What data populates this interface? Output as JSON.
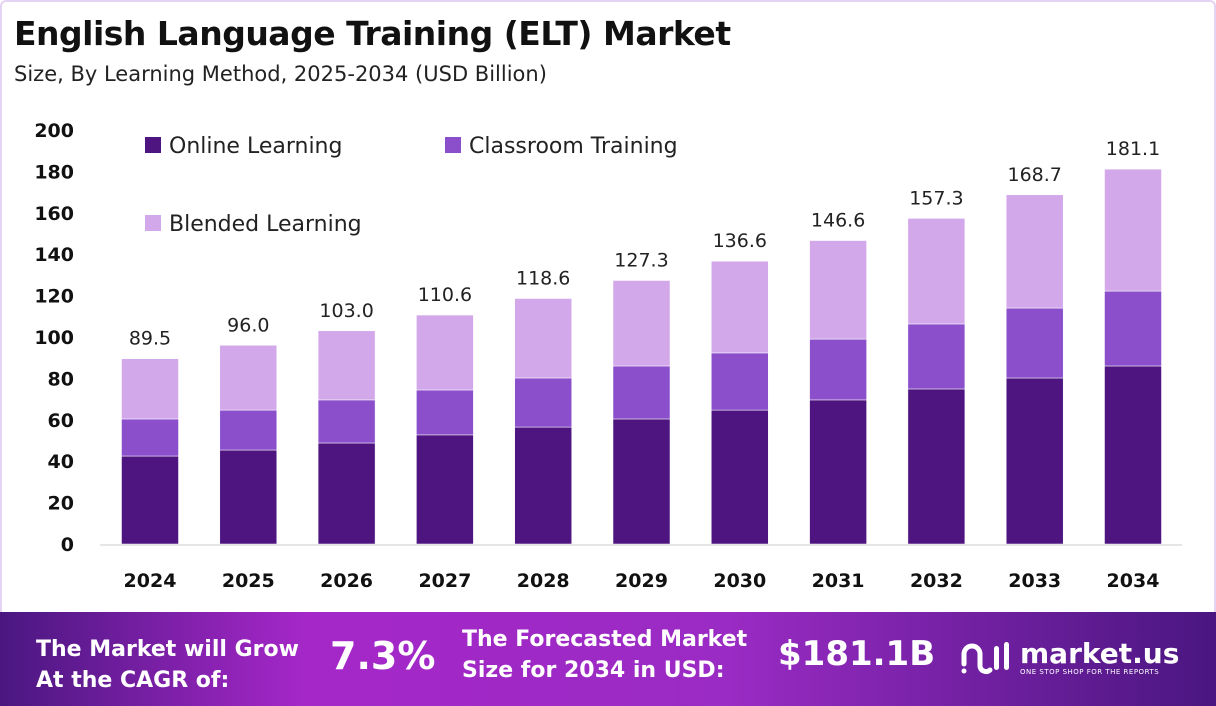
{
  "header": {
    "title": "English Language Training (ELT) Market",
    "subtitle": "Size, By Learning Method, 2025-2034 (USD Billion)"
  },
  "chart_data": {
    "type": "bar",
    "stacked": true,
    "categories": [
      "2024",
      "2025",
      "2026",
      "2027",
      "2028",
      "2029",
      "2030",
      "2031",
      "2032",
      "2033",
      "2034"
    ],
    "series": [
      {
        "name": "Online Learning",
        "color": "#4e1580",
        "values": [
          42.5,
          45.4,
          48.8,
          52.7,
          56.5,
          60.4,
          64.7,
          69.6,
          74.9,
          80.2,
          86.0
        ]
      },
      {
        "name": "Classroom Training",
        "color": "#8b4fcc",
        "values": [
          17.9,
          19.3,
          20.8,
          21.7,
          23.7,
          25.6,
          27.6,
          29.4,
          31.4,
          33.8,
          36.2
        ]
      },
      {
        "name": "Blended Learning",
        "color": "#d3a8ea",
        "values": [
          29.1,
          31.3,
          33.4,
          36.2,
          38.4,
          41.3,
          44.3,
          47.6,
          51.0,
          54.7,
          58.9
        ]
      }
    ],
    "totals": [
      "89.5",
      "96.0",
      "103.0",
      "110.6",
      "118.6",
      "127.3",
      "136.6",
      "146.6",
      "157.3",
      "168.7",
      "181.1"
    ],
    "yticks": [
      "0",
      "20",
      "40",
      "60",
      "80",
      "100",
      "120",
      "140",
      "160",
      "180",
      "200"
    ],
    "ylim": [
      0,
      200
    ],
    "grid": false,
    "legend_position": "top-left"
  },
  "footer": {
    "cagr_label_1": "The Market will Grow",
    "cagr_label_2": "At the CAGR of:",
    "cagr_value": "7.3%",
    "forecast_label_1": "The Forecasted Market",
    "forecast_label_2": "Size for 2034 in USD:",
    "forecast_value": "$181.1B",
    "logo_name": "market.us",
    "logo_tagline": "ONE STOP SHOP FOR THE REPORTS"
  }
}
